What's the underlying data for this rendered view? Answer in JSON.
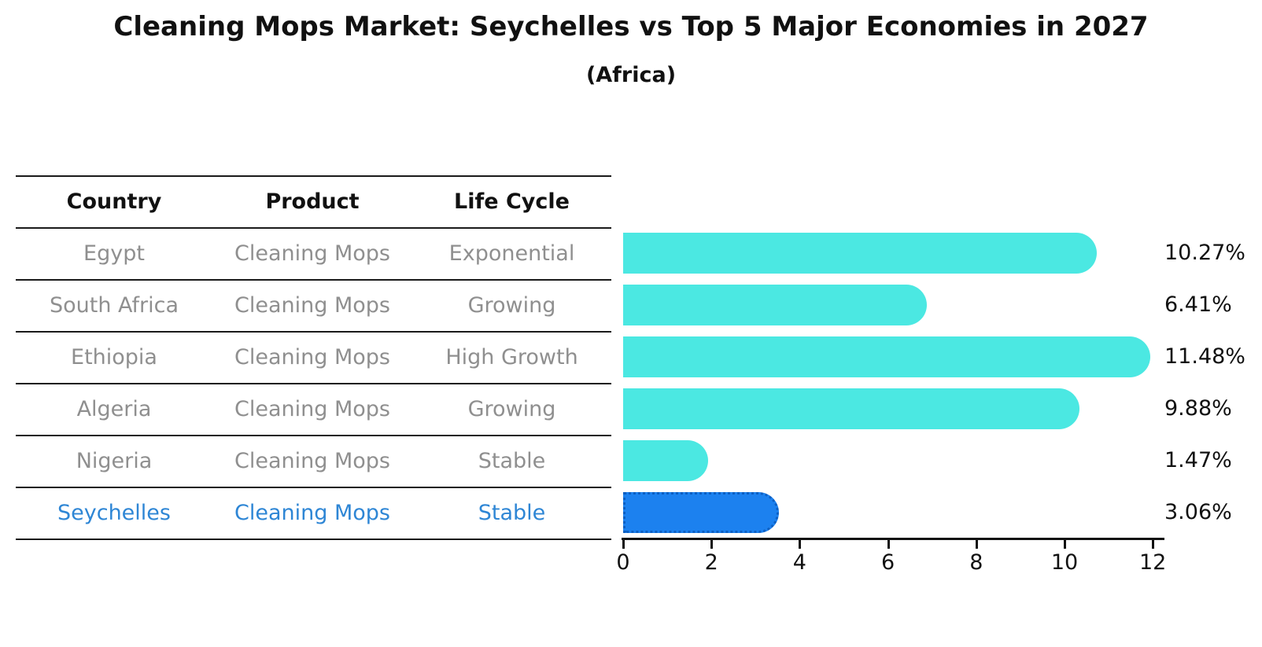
{
  "title": "Cleaning Mops Market: Seychelles vs Top 5 Major Economies in 2027",
  "subtitle": "(Africa)",
  "table": {
    "headers": [
      "Country",
      "Product",
      "Life Cycle"
    ],
    "rows": [
      {
        "country": "Egypt",
        "product": "Cleaning Mops",
        "life_cycle": "Exponential",
        "highlighted": false
      },
      {
        "country": "South Africa",
        "product": "Cleaning Mops",
        "life_cycle": "Growing",
        "highlighted": false
      },
      {
        "country": "Ethiopia",
        "product": "Cleaning Mops",
        "life_cycle": "High Growth",
        "highlighted": false
      },
      {
        "country": "Algeria",
        "product": "Cleaning Mops",
        "life_cycle": "Growing",
        "highlighted": false
      },
      {
        "country": "Nigeria",
        "product": "Cleaning Mops",
        "life_cycle": "Stable",
        "highlighted": false
      },
      {
        "country": "Seychelles",
        "product": "Cleaning Mops",
        "life_cycle": "Stable",
        "highlighted": true
      }
    ]
  },
  "chart_data": {
    "type": "bar",
    "orientation": "horizontal",
    "title": "Cleaning Mops Market: Seychelles vs Top 5 Major Economies in 2027",
    "subtitle": "(Africa)",
    "categories": [
      "Egypt",
      "South Africa",
      "Ethiopia",
      "Algeria",
      "Nigeria",
      "Seychelles"
    ],
    "values": [
      10.27,
      6.41,
      11.48,
      9.88,
      1.47,
      3.06
    ],
    "bar_labels": [
      "10.27%",
      "6.41%",
      "11.48%",
      "9.88%",
      "1.47%",
      "3.06%"
    ],
    "xlabel": "",
    "ylabel": "",
    "xlim": [
      0,
      12
    ],
    "xticks": [
      0,
      2,
      4,
      6,
      8,
      10,
      12
    ],
    "grid": false,
    "legend": false,
    "highlight_index": 5
  },
  "colors": {
    "bar": "#4BE8E2",
    "highlight_bar": "#1C81EF",
    "highlight_bar_border": "#0D5FC2",
    "highlight_text": "#2E86D5",
    "cell_text": "#8f8f8f",
    "header_text": "#111111",
    "line": "#1a1a1a"
  }
}
